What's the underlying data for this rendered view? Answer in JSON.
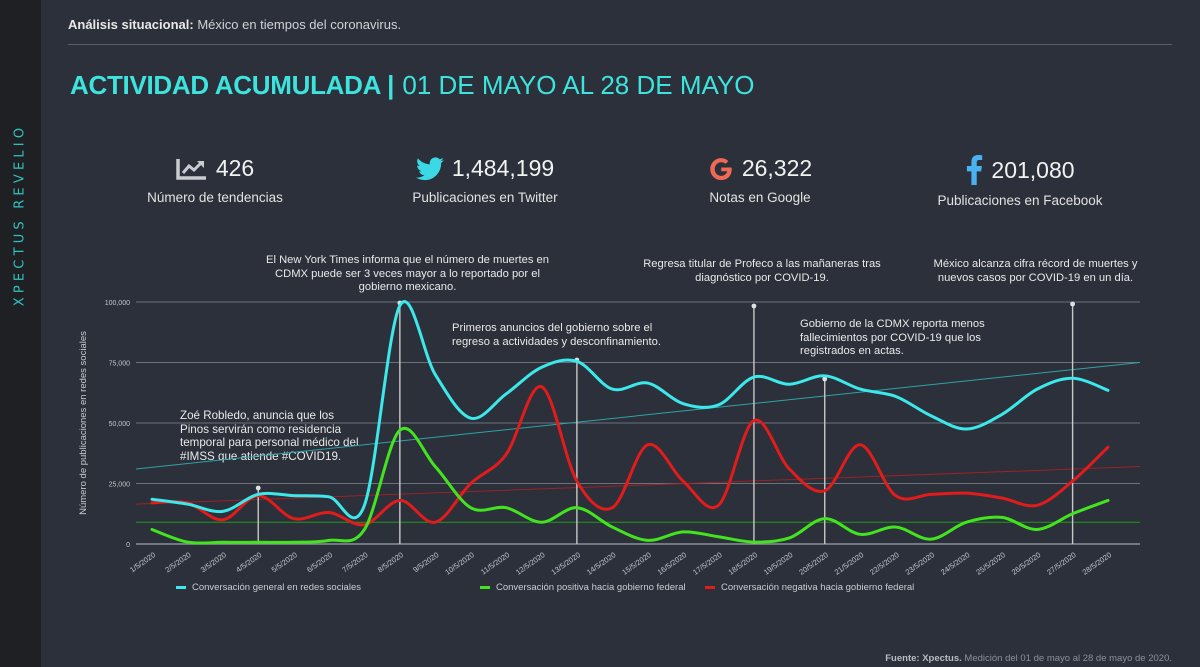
{
  "brand": "XPECTUS REVELIO",
  "header": {
    "label_bold": "Análisis situacional:",
    "label_rest": " México en tiempos del coronavirus."
  },
  "title": {
    "strong": "ACTIVIDAD ACUMULADA",
    "separator": "|",
    "range": "01 DE MAYO AL 28 DE MAYO"
  },
  "kpis": [
    {
      "icon": "trend-chart-icon",
      "value": "426",
      "label": "Número de tendencias",
      "color": "#c9ccd0"
    },
    {
      "icon": "twitter-icon",
      "value": "1,484,199",
      "label": "Publicaciones en Twitter",
      "color": "#3bd9e6"
    },
    {
      "icon": "google-icon",
      "value": "26,322",
      "label": "Notas en Google",
      "color": "#ee6a55"
    },
    {
      "icon": "facebook-icon",
      "value": "201,080",
      "label": "Publicaciones en Facebook",
      "color": "#4ab2f0"
    }
  ],
  "annotations": [
    {
      "date_index": 3,
      "text": "Zoé Robledo, anuncia que los Pinos servirán como residencia temporal para personal médico del #IMSS  que atiende #COVID19."
    },
    {
      "date_index": 7,
      "text": "El New York Times informa que el número de muertes en CDMX puede ser 3 veces mayor a lo reportado por el gobierno mexicano."
    },
    {
      "date_index": 12,
      "text": "Primeros anuncios del gobierno sobre el regreso a actividades y desconfinamiento."
    },
    {
      "date_index": 17,
      "text": "Regresa titular de Profeco a las mañaneras tras diagnóstico por COVID-19."
    },
    {
      "date_index": 19,
      "text": "Gobierno de la CDMX reporta menos fallecimientos por COVID-19 que los registrados en actas."
    },
    {
      "date_index": 26,
      "text": "México alcanza cifra récord de muertes y nuevos casos por COVID-19 en un día."
    }
  ],
  "footer": {
    "bold": "Fuente: Xpectus.",
    "rest": " Medición del 01 de mayo al 28 de mayo de 2020."
  },
  "chart_data": {
    "type": "line",
    "title": "",
    "xlabel": "",
    "ylabel": "Número de publicaciones en redes sociales",
    "ylim": [
      0,
      100000
    ],
    "yticks": [
      0,
      25000,
      50000,
      75000,
      100000
    ],
    "ytick_labels": [
      "0",
      "25,000",
      "50,000",
      "75,000",
      "100,000"
    ],
    "grid": true,
    "legend": "bottom",
    "x": [
      "1/5/2020",
      "2/5/2020",
      "3/5/2020",
      "4/5/2020",
      "5/5/2020",
      "6/5/2020",
      "7/5/2020",
      "8/5/2020",
      "9/5/2020",
      "10/5/2020",
      "11/5/2020",
      "12/5/2020",
      "13/5/2020",
      "14/5/2020",
      "15/5/2020",
      "16/5/2020",
      "17/5/2020",
      "18/5/2020",
      "19/5/2020",
      "20/5/2020",
      "21/5/2020",
      "22/5/2020",
      "23/5/2020",
      "24/5/2020",
      "25/5/2020",
      "26/5/2020",
      "27/5/2020",
      "28/5/2020"
    ],
    "series": [
      {
        "name": "Conversación general en redes sociales",
        "color": "#3de8ea",
        "values": [
          18500,
          16500,
          13500,
          20500,
          20000,
          19500,
          16000,
          98500,
          70000,
          52000,
          62000,
          73000,
          75500,
          64000,
          66500,
          58000,
          57500,
          69000,
          66000,
          69500,
          64000,
          61000,
          53000,
          47500,
          53500,
          64000,
          68500,
          63500
        ],
        "trend": {
          "start": 31000,
          "end": 75000,
          "color": "#2fa3a8"
        }
      },
      {
        "name": "Conversación positiva hacia gobierno federal",
        "color": "#43e41f",
        "values": [
          6000,
          800,
          700,
          700,
          700,
          1500,
          6000,
          47000,
          32000,
          15000,
          15000,
          9000,
          15000,
          7000,
          1500,
          5000,
          3000,
          800,
          2500,
          10500,
          4000,
          7000,
          2000,
          9000,
          11000,
          6000,
          12500,
          18000
        ],
        "trend": {
          "start": 9000,
          "end": 9000,
          "color": "#1f9a1a"
        }
      },
      {
        "name": "Conversación negativa hacia gobierno federal",
        "color": "#e21b1b",
        "values": [
          17000,
          17000,
          10000,
          20000,
          10500,
          13000,
          8000,
          18000,
          9000,
          25000,
          37000,
          65000,
          26000,
          15000,
          41000,
          26000,
          16000,
          51000,
          31000,
          22000,
          41000,
          20000,
          20500,
          21000,
          19000,
          16000,
          26000,
          40000
        ],
        "trend": {
          "start": 16500,
          "end": 32000,
          "color": "#9c2323"
        }
      }
    ]
  }
}
